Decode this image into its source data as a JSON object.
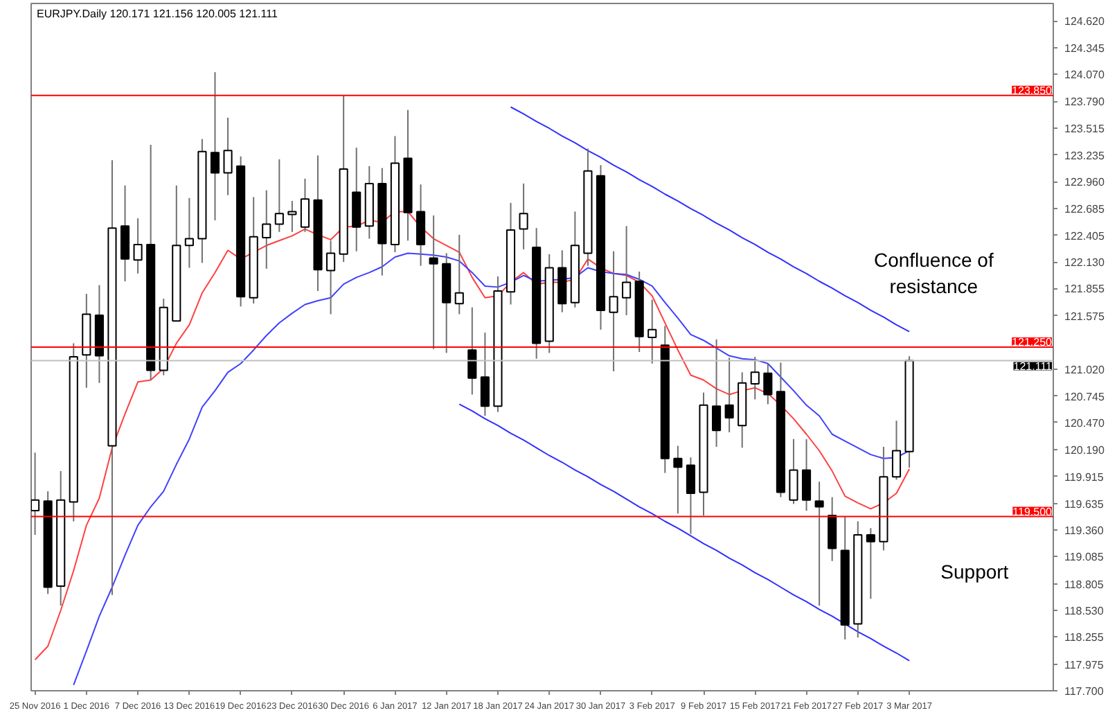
{
  "chart_data": {
    "type": "candlestick",
    "title": "EURJPY.Daily  120.171 121.156 120.005 121.111",
    "categories": [
      "25 Nov 2016",
      null,
      null,
      null,
      "1 Dec 2016",
      null,
      null,
      null,
      "7 Dec 2016",
      null,
      null,
      null,
      "13 Dec 2016",
      null,
      null,
      null,
      "19 Dec 2016",
      null,
      null,
      null,
      "23 Dec 2016",
      null,
      null,
      null,
      "30 Dec 2016",
      null,
      null,
      null,
      "6 Jan 2017",
      null,
      null,
      null,
      "12 Jan 2017",
      null,
      null,
      null,
      "18 Jan 2017",
      null,
      null,
      null,
      "24 Jan 2017",
      null,
      null,
      null,
      "30 Jan 2017",
      null,
      null,
      null,
      "3 Feb 2017",
      null,
      null,
      null,
      "9 Feb 2017",
      null,
      null,
      null,
      "15 Feb 2017",
      null,
      null,
      null,
      "21 Feb 2017",
      null,
      null,
      null,
      "27 Feb 2017",
      null,
      null,
      null,
      "3 Mar 2017"
    ],
    "ohlc": [
      [
        119.56,
        120.16,
        119.31,
        119.67
      ],
      [
        119.66,
        119.76,
        118.7,
        118.77
      ],
      [
        118.78,
        119.97,
        118.58,
        119.67
      ],
      [
        119.65,
        121.29,
        119.45,
        121.15
      ],
      [
        121.17,
        121.8,
        120.83,
        121.59
      ],
      [
        121.58,
        121.89,
        120.88,
        121.16
      ],
      [
        120.23,
        123.18,
        118.69,
        122.48
      ],
      [
        122.5,
        122.92,
        121.93,
        122.16
      ],
      [
        122.15,
        122.58,
        122.01,
        122.31
      ],
      [
        122.31,
        123.34,
        120.91,
        121.01
      ],
      [
        121.01,
        121.75,
        120.96,
        121.66
      ],
      [
        121.52,
        122.92,
        121.52,
        122.3
      ],
      [
        122.3,
        122.79,
        122.07,
        122.37
      ],
      [
        122.37,
        123.4,
        122.12,
        123.27
      ],
      [
        123.26,
        124.09,
        122.56,
        123.05
      ],
      [
        123.05,
        123.62,
        122.82,
        123.28
      ],
      [
        123.12,
        123.22,
        121.67,
        121.77
      ],
      [
        121.76,
        122.8,
        121.7,
        122.39
      ],
      [
        122.38,
        122.87,
        122.06,
        122.52
      ],
      [
        122.52,
        123.19,
        122.44,
        122.63
      ],
      [
        122.62,
        122.76,
        122.44,
        122.65
      ],
      [
        122.49,
        122.99,
        122.44,
        122.78
      ],
      [
        122.77,
        123.23,
        121.83,
        122.05
      ],
      [
        122.04,
        122.35,
        121.59,
        122.22
      ],
      [
        122.21,
        123.85,
        122.13,
        123.09
      ],
      [
        122.85,
        123.31,
        122.24,
        122.49
      ],
      [
        122.5,
        123.12,
        122.37,
        122.94
      ],
      [
        122.94,
        123.1,
        121.99,
        122.32
      ],
      [
        122.31,
        123.43,
        122.23,
        123.15
      ],
      [
        123.2,
        123.7,
        122.35,
        122.64
      ],
      [
        122.65,
        122.93,
        122.09,
        122.31
      ],
      [
        122.17,
        122.61,
        121.23,
        122.11
      ],
      [
        122.11,
        122.22,
        121.19,
        121.71
      ],
      [
        121.7,
        122.41,
        121.59,
        121.81
      ],
      [
        121.22,
        121.66,
        120.76,
        120.93
      ],
      [
        120.94,
        121.4,
        120.54,
        120.64
      ],
      [
        120.64,
        121.98,
        120.58,
        121.83
      ],
      [
        121.82,
        122.74,
        121.69,
        122.46
      ],
      [
        122.47,
        122.94,
        122.26,
        122.63
      ],
      [
        122.28,
        122.48,
        121.13,
        121.29
      ],
      [
        121.31,
        122.21,
        121.19,
        122.07
      ],
      [
        122.07,
        122.25,
        121.61,
        121.7
      ],
      [
        121.71,
        122.65,
        121.66,
        122.3
      ],
      [
        122.22,
        123.3,
        122.09,
        123.07
      ],
      [
        123.02,
        123.13,
        121.43,
        121.63
      ],
      [
        121.61,
        122.24,
        121.0,
        121.77
      ],
      [
        121.76,
        122.5,
        121.58,
        121.92
      ],
      [
        121.93,
        122.03,
        121.2,
        121.36
      ],
      [
        121.35,
        121.74,
        121.08,
        121.43
      ],
      [
        121.27,
        121.47,
        119.95,
        120.1
      ],
      [
        120.1,
        120.23,
        119.53,
        120.01
      ],
      [
        120.03,
        120.11,
        119.32,
        119.74
      ],
      [
        119.75,
        120.78,
        119.51,
        120.65
      ],
      [
        120.64,
        121.33,
        120.22,
        120.39
      ],
      [
        120.65,
        121.14,
        120.37,
        120.52
      ],
      [
        120.44,
        120.99,
        120.21,
        120.88
      ],
      [
        120.87,
        121.15,
        120.71,
        120.99
      ],
      [
        120.98,
        121.08,
        120.66,
        120.76
      ],
      [
        120.79,
        121.09,
        119.7,
        119.75
      ],
      [
        119.67,
        120.3,
        119.63,
        119.98
      ],
      [
        119.98,
        120.3,
        119.56,
        119.67
      ],
      [
        119.66,
        119.86,
        118.58,
        119.6
      ],
      [
        119.51,
        119.7,
        119.04,
        119.17
      ],
      [
        119.15,
        119.5,
        118.23,
        118.38
      ],
      [
        118.39,
        119.45,
        118.25,
        119.31
      ],
      [
        119.31,
        119.38,
        118.65,
        119.24
      ],
      [
        119.24,
        120.22,
        119.15,
        119.91
      ],
      [
        119.91,
        120.49,
        119.88,
        120.18
      ],
      [
        120.171,
        121.156,
        120.005,
        121.111
      ]
    ],
    "series": [
      {
        "type": "line",
        "color": "#ff4040",
        "values": [
          118.02,
          118.16,
          118.53,
          118.94,
          119.41,
          119.69,
          120.21,
          120.56,
          120.89,
          120.91,
          121.03,
          121.29,
          121.48,
          121.81,
          122.02,
          122.25,
          122.16,
          122.23,
          122.3,
          122.35,
          122.4,
          122.47,
          122.41,
          122.36,
          122.49,
          122.5,
          122.56,
          122.54,
          122.65,
          122.65,
          122.49,
          122.37,
          122.3,
          122.23,
          121.97,
          121.76,
          121.78,
          121.92,
          122.02,
          121.9,
          121.92,
          121.92,
          121.95,
          122.16,
          122.07,
          122.01,
          121.99,
          121.92,
          121.78,
          121.5,
          121.22,
          120.96,
          120.91,
          120.82,
          120.76,
          120.8,
          120.83,
          120.77,
          120.65,
          120.51,
          120.35,
          120.18,
          119.97,
          119.71,
          119.64,
          119.58,
          119.64,
          119.74,
          119.99
        ]
      },
      {
        "type": "line",
        "color": "#4040ff",
        "values": [
          null,
          null,
          null,
          117.76,
          118.11,
          118.47,
          118.77,
          119.1,
          119.41,
          119.6,
          119.76,
          120.04,
          120.3,
          120.63,
          120.8,
          120.99,
          121.08,
          121.22,
          121.37,
          121.5,
          121.6,
          121.69,
          121.73,
          121.76,
          121.9,
          121.97,
          122.02,
          122.08,
          122.18,
          122.22,
          122.21,
          122.2,
          122.18,
          122.14,
          122.02,
          121.88,
          121.87,
          121.92,
          121.99,
          121.93,
          121.94,
          121.95,
          121.97,
          122.07,
          122.03,
          122.01,
          122.0,
          121.95,
          121.88,
          121.71,
          121.55,
          121.38,
          121.32,
          121.24,
          121.16,
          121.13,
          121.12,
          121.08,
          120.94,
          120.8,
          120.65,
          120.54,
          120.35,
          120.28,
          120.21,
          120.14,
          120.1,
          120.11,
          120.18
        ]
      },
      {
        "type": "line",
        "color": "#3030ff",
        "values": [
          null,
          null,
          null,
          null,
          null,
          null,
          null,
          null,
          null,
          null,
          null,
          null,
          null,
          null,
          null,
          null,
          null,
          null,
          null,
          null,
          null,
          null,
          null,
          null,
          null,
          null,
          null,
          null,
          null,
          null,
          null,
          null,
          null,
          null,
          null,
          null,
          null,
          123.73,
          123.66,
          123.58,
          123.51,
          123.43,
          123.36,
          123.28,
          123.21,
          123.13,
          123.06,
          122.98,
          122.91,
          122.83,
          122.76,
          122.68,
          122.61,
          122.53,
          122.46,
          122.38,
          122.31,
          122.23,
          122.16,
          122.08,
          122.01,
          121.93,
          121.86,
          121.78,
          121.71,
          121.63,
          121.56,
          121.48,
          121.41
        ]
      },
      {
        "type": "line",
        "color": "#3030ff",
        "values": [
          null,
          null,
          null,
          null,
          null,
          null,
          null,
          null,
          null,
          null,
          null,
          null,
          null,
          null,
          null,
          null,
          null,
          null,
          null,
          null,
          null,
          null,
          null,
          null,
          null,
          null,
          null,
          null,
          null,
          null,
          null,
          null,
          null,
          120.66,
          120.59,
          120.51,
          120.44,
          120.36,
          120.29,
          120.21,
          120.13,
          120.06,
          119.98,
          119.91,
          119.83,
          119.76,
          119.68,
          119.6,
          119.53,
          119.45,
          119.38,
          119.3,
          119.22,
          119.15,
          119.07,
          119.0,
          118.92,
          118.85,
          118.77,
          118.69,
          118.62,
          118.54,
          118.47,
          118.39,
          118.31,
          118.24,
          118.16,
          118.09,
          118.01
        ]
      }
    ],
    "ylim": [
      117.7,
      124.8
    ],
    "yticks": [
      {
        "value": 124.62,
        "label": "124.620"
      },
      {
        "value": 124.345,
        "label": "124.345"
      },
      {
        "value": 124.07,
        "label": "124.070"
      },
      {
        "value": 123.79,
        "label": "123.790"
      },
      {
        "value": 123.515,
        "label": "123.515"
      },
      {
        "value": 123.235,
        "label": "123.235"
      },
      {
        "value": 122.96,
        "label": "122.960"
      },
      {
        "value": 122.685,
        "label": "122.685"
      },
      {
        "value": 122.405,
        "label": "122.405"
      },
      {
        "value": 122.13,
        "label": "122.130"
      },
      {
        "value": 121.855,
        "label": "121.855"
      },
      {
        "value": 121.575,
        "label": "121.575"
      },
      {
        "value": 121.02,
        "label": "121.020"
      },
      {
        "value": 120.745,
        "label": "120.745"
      },
      {
        "value": 120.47,
        "label": "120.470"
      },
      {
        "value": 120.19,
        "label": "120.190"
      },
      {
        "value": 119.915,
        "label": "119.915"
      },
      {
        "value": 119.635,
        "label": "119.635"
      },
      {
        "value": 119.36,
        "label": "119.360"
      },
      {
        "value": 119.085,
        "label": "119.085"
      },
      {
        "value": 118.805,
        "label": "118.805"
      },
      {
        "value": 118.53,
        "label": "118.530"
      },
      {
        "value": 118.255,
        "label": "118.255"
      },
      {
        "value": 117.975,
        "label": "117.975"
      },
      {
        "value": 117.7,
        "label": "117.700"
      }
    ],
    "ref_lines": [
      {
        "axis": "y",
        "value": 123.85,
        "label": "123.850",
        "color": "#ff0000"
      },
      {
        "axis": "y",
        "value": 121.25,
        "label": "121.250",
        "color": "#ff0000"
      },
      {
        "axis": "y",
        "value": 121.111,
        "label": "121.111",
        "color": "#c0c0c0"
      },
      {
        "axis": "y",
        "value": 119.5,
        "label": "119.500",
        "color": "#ff0000"
      }
    ],
    "annotations": [
      "Confluence of\nresistance",
      "Support"
    ],
    "grid": false
  }
}
